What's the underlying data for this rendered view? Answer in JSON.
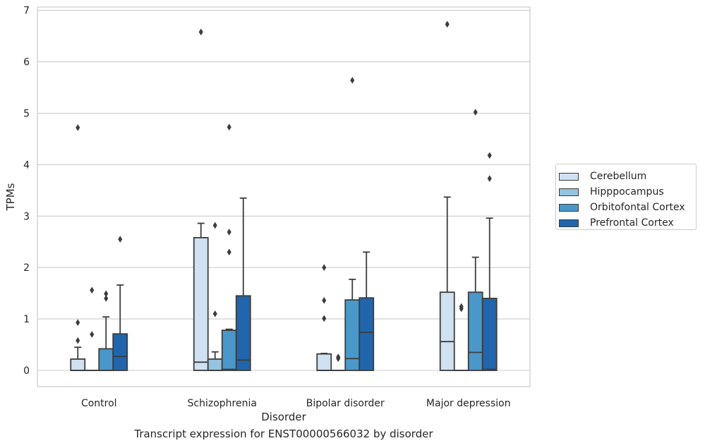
{
  "chart_data": {
    "type": "box",
    "title": "Transcript expression for ENST00000566032 by disorder",
    "xlabel": "Disorder",
    "ylabel": "TPMs",
    "ylim": [
      -0.32,
      7.08
    ],
    "yticks": [
      0,
      1,
      2,
      3,
      4,
      5,
      6,
      7
    ],
    "grid": true,
    "legend_position": "right",
    "categories": [
      "Control",
      "Schizophrenia",
      "Bipolar disorder",
      "Major depression"
    ],
    "series": [
      {
        "name": "Cerebellum",
        "color": "#d0e1f2",
        "boxes": [
          {
            "q1": 0.0,
            "median": 0.0,
            "q3": 0.22,
            "whisker_low": 0.0,
            "whisker_high": 0.45,
            "outliers": [
              0.58,
              0.93,
              4.72
            ]
          },
          {
            "q1": 0.0,
            "median": 0.16,
            "q3": 2.58,
            "whisker_low": 0.0,
            "whisker_high": 2.86,
            "outliers": [
              6.58
            ]
          },
          {
            "q1": 0.0,
            "median": 0.0,
            "q3": 0.32,
            "whisker_low": 0.0,
            "whisker_high": 0.33,
            "outliers": [
              1.01,
              1.36,
              2.0
            ]
          },
          {
            "q1": 0.0,
            "median": 0.56,
            "q3": 1.52,
            "whisker_low": 0.0,
            "whisker_high": 3.37,
            "outliers": [
              6.73
            ]
          }
        ]
      },
      {
        "name": "Hipppocampus",
        "color": "#94c4df",
        "boxes": [
          {
            "q1": 0.0,
            "median": 0.0,
            "q3": 0.0,
            "whisker_low": 0.0,
            "whisker_high": 0.0,
            "outliers": [
              0.7,
              1.56
            ]
          },
          {
            "q1": 0.0,
            "median": 0.0,
            "q3": 0.22,
            "whisker_low": 0.0,
            "whisker_high": 0.36,
            "outliers": [
              1.1,
              2.82
            ]
          },
          {
            "q1": 0.0,
            "median": 0.0,
            "q3": 0.0,
            "whisker_low": 0.0,
            "whisker_high": 0.0,
            "outliers": [
              0.23,
              0.26
            ]
          },
          {
            "q1": 0.0,
            "median": 0.0,
            "q3": 0.0,
            "whisker_low": 0.0,
            "whisker_high": 0.0,
            "outliers": [
              1.2,
              1.24
            ]
          }
        ]
      },
      {
        "name": "Orbitofontal Cortex",
        "color": "#4a98c9",
        "boxes": [
          {
            "q1": 0.0,
            "median": 0.0,
            "q3": 0.42,
            "whisker_low": 0.0,
            "whisker_high": 1.04,
            "outliers": [
              1.4,
              1.49
            ]
          },
          {
            "q1": 0.0,
            "median": 0.02,
            "q3": 0.78,
            "whisker_low": 0.0,
            "whisker_high": 0.8,
            "outliers": [
              2.3,
              2.69,
              4.73
            ]
          },
          {
            "q1": 0.0,
            "median": 0.23,
            "q3": 1.37,
            "whisker_low": 0.0,
            "whisker_high": 1.77,
            "outliers": [
              5.64
            ]
          },
          {
            "q1": 0.0,
            "median": 0.35,
            "q3": 1.52,
            "whisker_low": 0.0,
            "whisker_high": 2.2,
            "outliers": [
              5.02
            ]
          }
        ]
      },
      {
        "name": "Prefrontal Cortex",
        "color": "#2166ac",
        "boxes": [
          {
            "q1": 0.0,
            "median": 0.27,
            "q3": 0.71,
            "whisker_low": 0.0,
            "whisker_high": 1.66,
            "outliers": [
              2.55
            ]
          },
          {
            "q1": 0.0,
            "median": 0.2,
            "q3": 1.45,
            "whisker_low": 0.0,
            "whisker_high": 3.35,
            "outliers": []
          },
          {
            "q1": 0.0,
            "median": 0.74,
            "q3": 1.41,
            "whisker_low": 0.0,
            "whisker_high": 2.3,
            "outliers": []
          },
          {
            "q1": 0.0,
            "median": 0.02,
            "q3": 1.4,
            "whisker_low": 0.0,
            "whisker_high": 2.96,
            "outliers": [
              3.73,
              4.18
            ]
          }
        ]
      }
    ]
  }
}
